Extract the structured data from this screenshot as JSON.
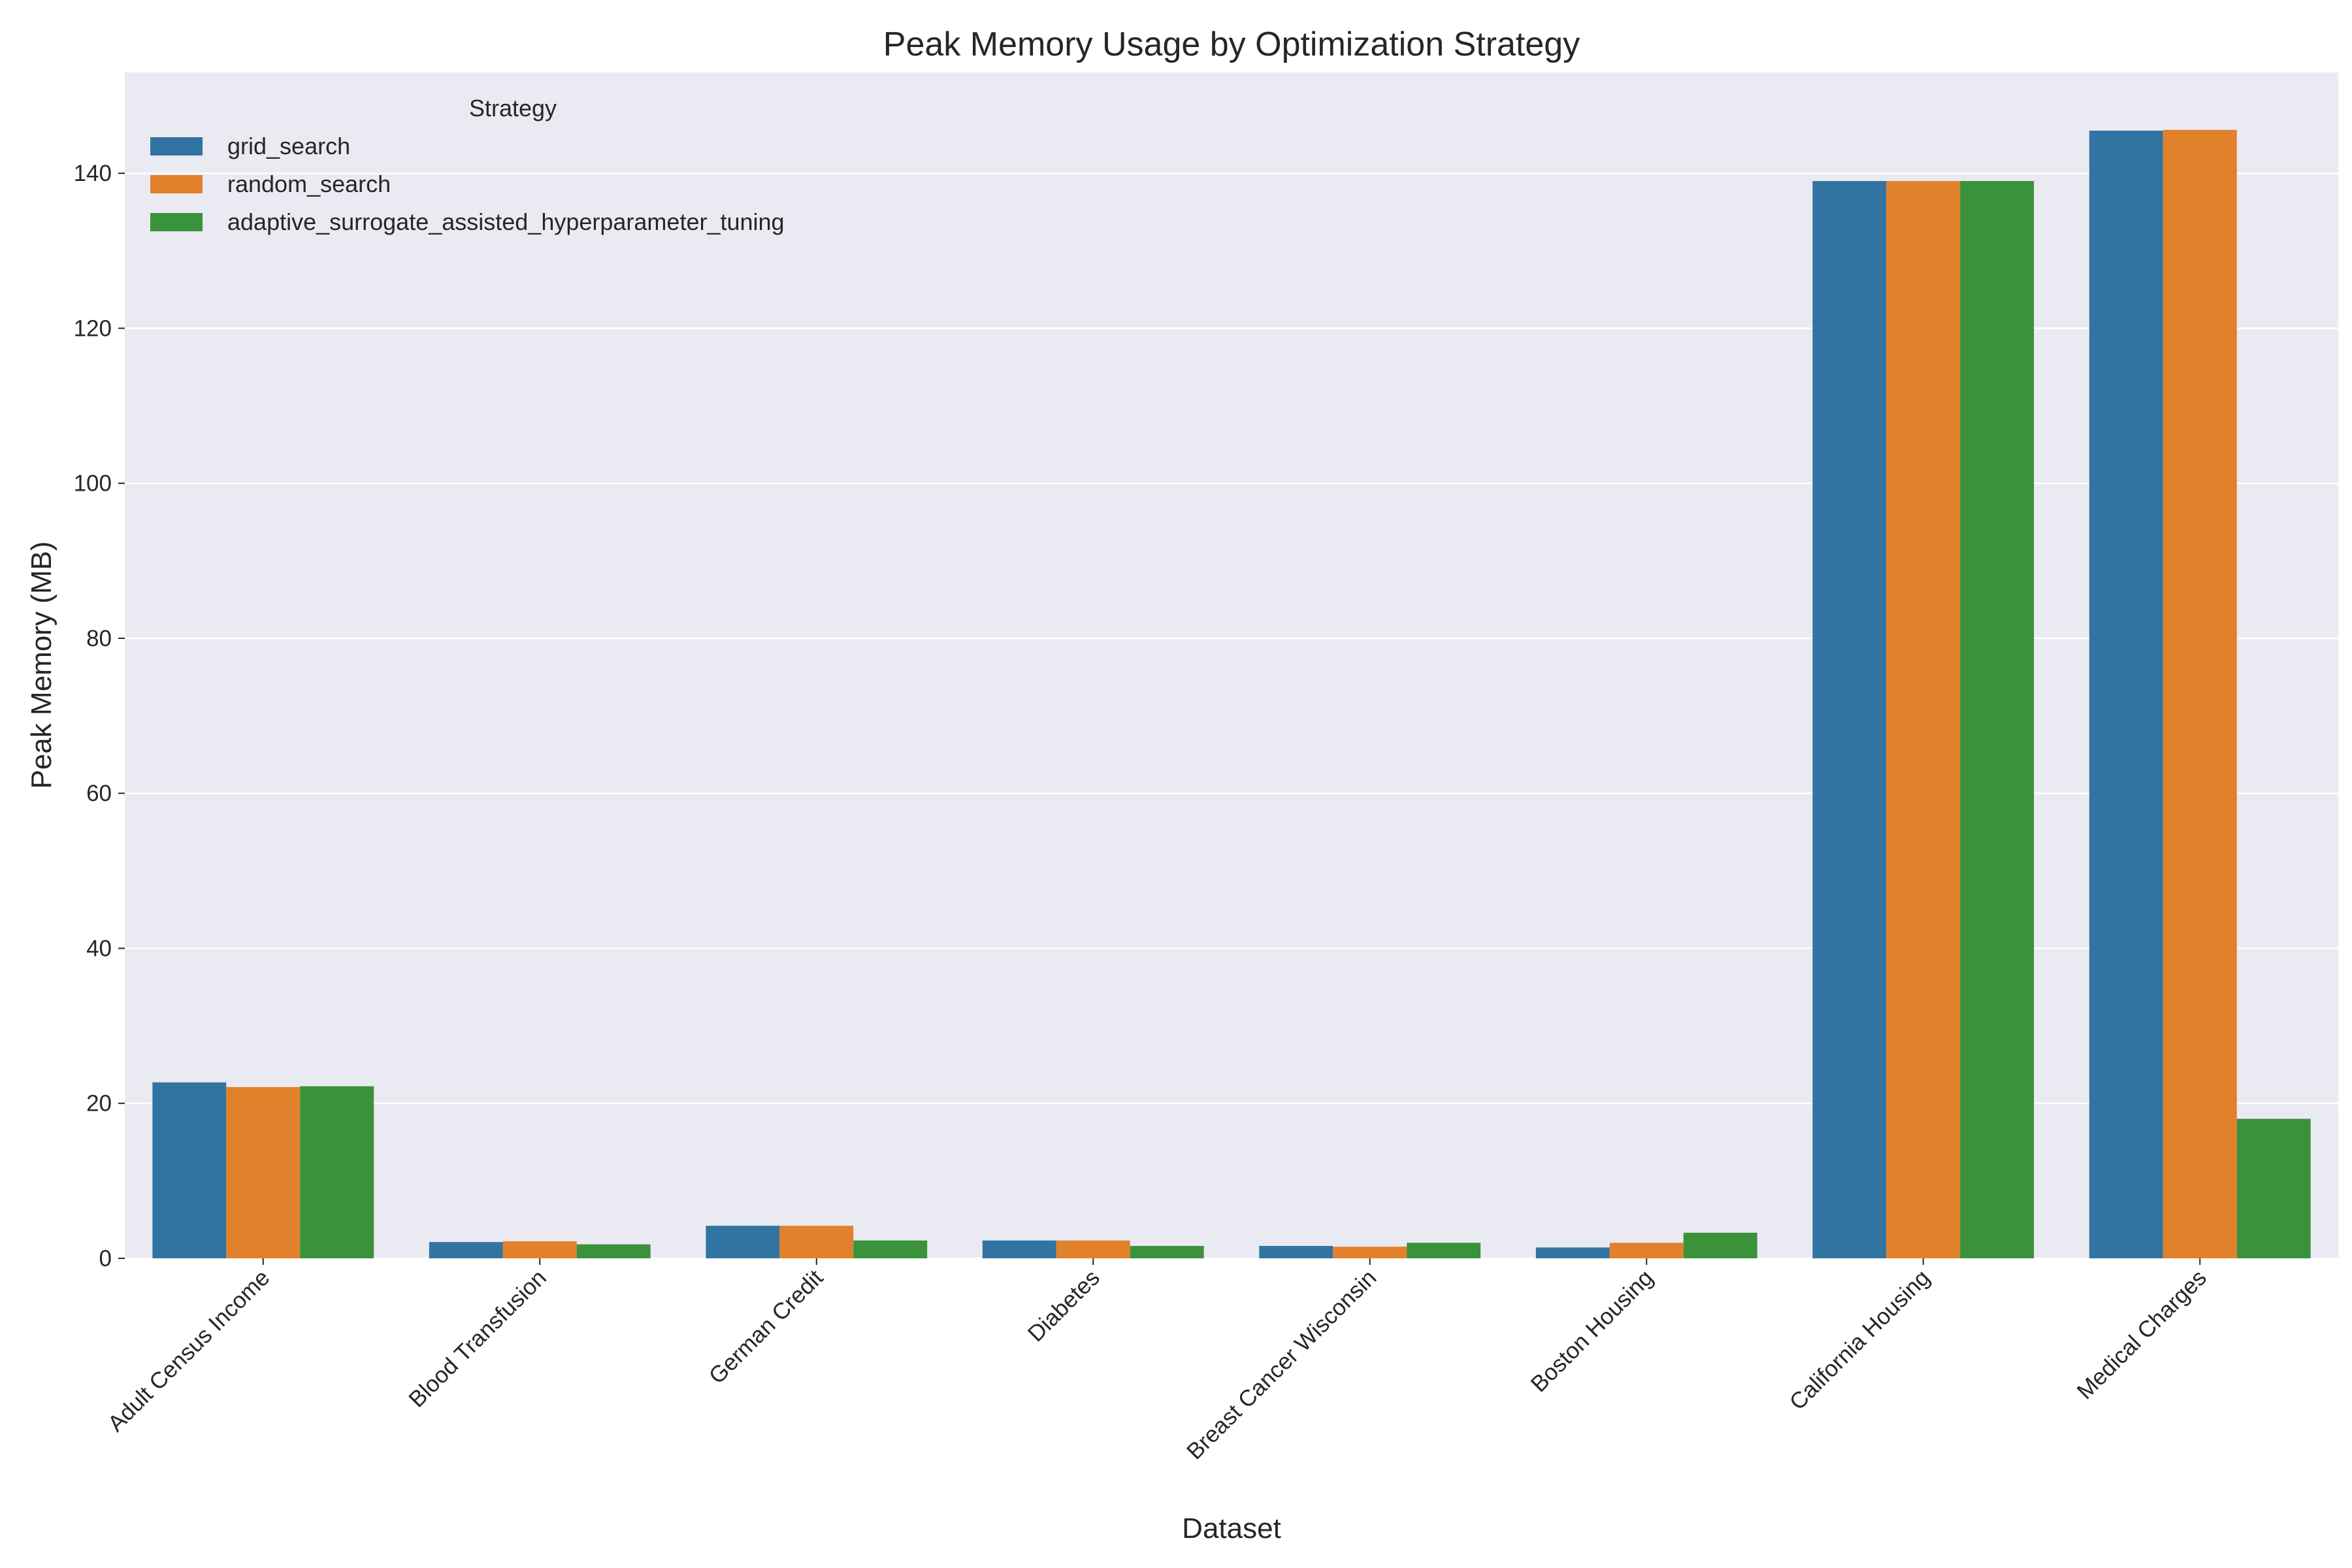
{
  "chart_data": {
    "type": "bar",
    "title": "Peak Memory Usage by Optimization Strategy",
    "xlabel": "Dataset",
    "ylabel": "Peak Memory (MB)",
    "ylim": [
      0,
      153
    ],
    "yticks": [
      0,
      20,
      40,
      60,
      80,
      100,
      120,
      140
    ],
    "grid": true,
    "legend": {
      "title": "Strategy",
      "placement": "top-left"
    },
    "categories": [
      "Adult Census Income",
      "Blood Transfusion",
      "German Credit",
      "Diabetes",
      "Breast Cancer Wisconsin",
      "Boston Housing",
      "California Housing",
      "Medical Charges"
    ],
    "series": [
      {
        "name": "grid_search",
        "color": "#3274a1",
        "values": [
          22.7,
          2.1,
          4.2,
          2.3,
          1.6,
          1.4,
          139.0,
          145.5
        ]
      },
      {
        "name": "random_search",
        "color": "#e1812c",
        "values": [
          22.1,
          2.2,
          4.2,
          2.3,
          1.5,
          2.0,
          139.0,
          145.6
        ]
      },
      {
        "name": "adaptive_surrogate_assisted_hyperparameter_tuning",
        "color": "#3a923a",
        "values": [
          22.2,
          1.8,
          2.3,
          1.6,
          2.0,
          3.3,
          139.0,
          18.0
        ]
      }
    ]
  }
}
